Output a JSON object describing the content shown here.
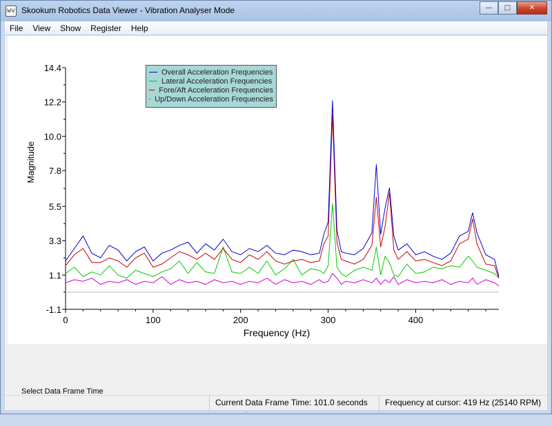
{
  "window": {
    "title": "Skookum Robotics Data Viewer - Vibration Analyser Mode",
    "controls": {
      "minimize": "—",
      "maximize": "□",
      "close": "✕"
    },
    "app_icon": "wv"
  },
  "menu": [
    "File",
    "View",
    "Show",
    "Register",
    "Help"
  ],
  "chart_data": {
    "type": "line",
    "xlabel": "Frequency (Hz)",
    "ylabel": "Magnitude",
    "xlim": [
      0,
      495
    ],
    "ylim": [
      -1.1,
      14.4
    ],
    "x_ticks": [
      0,
      100,
      200,
      300,
      400
    ],
    "y_ticks": [
      -1.1,
      1.1,
      3.3,
      5.5,
      7.8,
      10.0,
      12.2,
      14.4
    ],
    "y_tick_labels": [
      "-1.1",
      "1.1",
      "3.3",
      "5.5",
      "7.8",
      "10.0",
      "12.2",
      "14.4"
    ],
    "grid": false,
    "legend_placement": "top-left",
    "x": [
      0,
      10,
      20,
      30,
      40,
      50,
      60,
      70,
      80,
      90,
      100,
      110,
      120,
      130,
      140,
      150,
      160,
      170,
      180,
      190,
      200,
      210,
      220,
      230,
      240,
      250,
      260,
      270,
      280,
      290,
      295,
      300,
      305,
      310,
      315,
      320,
      330,
      340,
      350,
      355,
      360,
      365,
      370,
      375,
      380,
      390,
      400,
      410,
      420,
      430,
      440,
      450,
      460,
      465,
      470,
      480,
      490,
      495
    ],
    "series": [
      {
        "name": "Overall Acceleration Frequencies",
        "color": "#0000cc",
        "values": [
          2.0,
          2.8,
          3.6,
          2.5,
          2.2,
          3.0,
          2.7,
          2.0,
          2.6,
          2.9,
          2.0,
          2.5,
          2.7,
          3.0,
          3.2,
          2.5,
          3.1,
          2.7,
          3.4,
          2.6,
          2.4,
          2.8,
          2.6,
          3.0,
          2.5,
          2.4,
          2.7,
          2.6,
          2.4,
          2.5,
          3.7,
          4.5,
          12.3,
          4.0,
          2.6,
          2.5,
          2.4,
          2.8,
          3.8,
          8.2,
          3.7,
          5.4,
          6.7,
          3.6,
          2.7,
          3.1,
          2.4,
          2.6,
          2.3,
          2.1,
          2.5,
          3.6,
          3.9,
          5.1,
          3.8,
          2.4,
          2.1,
          1.0
        ]
      },
      {
        "name": "Lateral Acceleration Frequencies",
        "color": "#00cc00",
        "values": [
          1.2,
          1.6,
          1.0,
          1.3,
          1.1,
          1.7,
          1.1,
          0.9,
          1.4,
          1.2,
          1.0,
          1.3,
          1.5,
          2.0,
          1.2,
          1.9,
          1.3,
          1.2,
          2.9,
          1.3,
          1.2,
          1.6,
          1.2,
          2.0,
          1.1,
          1.5,
          2.1,
          1.1,
          1.5,
          1.4,
          1.2,
          1.7,
          5.7,
          1.6,
          1.2,
          1.0,
          1.4,
          1.6,
          1.4,
          2.9,
          1.1,
          2.3,
          1.9,
          1.1,
          1.0,
          1.8,
          1.2,
          1.3,
          1.6,
          1.5,
          1.7,
          1.6,
          2.3,
          2.0,
          1.6,
          1.4,
          1.2,
          0.9
        ]
      },
      {
        "name": "Fore/Aft Acceleration Frequencies",
        "color": "#cc0000",
        "values": [
          1.7,
          2.4,
          2.8,
          1.9,
          1.9,
          2.2,
          2.0,
          1.6,
          2.2,
          2.5,
          1.6,
          1.8,
          2.2,
          2.6,
          2.4,
          2.1,
          2.5,
          2.1,
          2.8,
          2.1,
          1.9,
          2.4,
          2.1,
          2.6,
          2.0,
          1.8,
          2.0,
          2.1,
          1.9,
          2.0,
          3.1,
          3.6,
          11.4,
          3.2,
          2.1,
          2.0,
          1.8,
          2.1,
          3.0,
          6.1,
          2.9,
          4.2,
          6.4,
          2.7,
          2.1,
          2.6,
          2.0,
          2.1,
          1.9,
          1.7,
          2.0,
          3.1,
          3.4,
          4.7,
          3.1,
          1.8,
          1.7,
          0.9
        ]
      },
      {
        "name": "Up/Down Acceleration Frequencies",
        "color": "#cc00cc",
        "values": [
          0.6,
          0.8,
          0.7,
          0.9,
          0.5,
          0.7,
          0.6,
          0.8,
          0.5,
          0.7,
          0.6,
          1.0,
          0.5,
          0.8,
          0.6,
          0.7,
          0.5,
          0.8,
          0.6,
          0.7,
          0.5,
          0.7,
          0.6,
          0.9,
          0.5,
          0.8,
          0.6,
          0.7,
          0.5,
          0.8,
          0.6,
          0.7,
          1.2,
          0.9,
          0.5,
          0.7,
          0.6,
          0.8,
          0.6,
          0.9,
          0.5,
          0.8,
          0.6,
          1.0,
          0.5,
          0.8,
          0.6,
          0.7,
          0.6,
          0.8,
          0.5,
          0.7,
          0.6,
          0.9,
          0.5,
          0.8,
          0.6,
          0.4
        ]
      }
    ]
  },
  "slider": {
    "label": "Select Data Frame Time",
    "value_fraction": 0.435
  },
  "status": {
    "frame_time": "Current Data Frame Time: 101.0 seconds",
    "cursor_freq": "Frequency at cursor: 419 Hz (25140 RPM)"
  }
}
